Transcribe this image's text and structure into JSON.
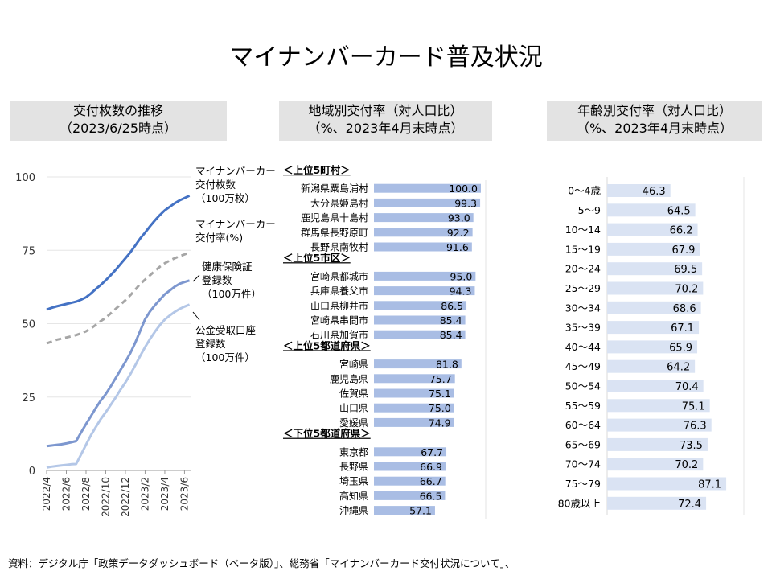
{
  "title": "マイナンバーカード普及状況",
  "source": "資料：デジタル庁「政策データダッシュボード（ベータ版）」、総務省「マイナンバーカード交付状況について」、",
  "left_panel": {
    "title_line1": "交付枚数の推移",
    "title_line2": "（2023/6/25時点）"
  },
  "middle_panel": {
    "title_line1": "地域別交付率（対人口比）",
    "title_line2": "（%、2023年4月末時点）"
  },
  "right_panel": {
    "title_line1": "年齢別交付率（対人口比）",
    "title_line2": "（%、2023年4月末時点）"
  },
  "chart_data": [
    {
      "type": "line",
      "ylim": [
        0,
        100
      ],
      "yticks": [
        0,
        25,
        50,
        75,
        100
      ],
      "xticks": [
        "2022/4",
        "2022/6",
        "2022/8",
        "2022/10",
        "2022/12",
        "2023/2",
        "2023/4",
        "2023/6"
      ],
      "x_positions": [
        0,
        2,
        4,
        6,
        8,
        10,
        12,
        14
      ],
      "series": [
        {
          "name": "card_count",
          "label_lines": [
            "マイナンバーカード",
            "交付枚数",
            "（100万枚）"
          ],
          "color": "#4472c4",
          "dash": false,
          "x": [
            0,
            0.5,
            1,
            1.5,
            2,
            2.5,
            3,
            3.5,
            4,
            4.5,
            5,
            5.5,
            6,
            6.5,
            7,
            7.5,
            8,
            8.5,
            9,
            9.5,
            10,
            10.5,
            11,
            11.5,
            12,
            12.5,
            13,
            13.5,
            14,
            14.5
          ],
          "values": [
            54.8,
            55.4,
            55.9,
            56.3,
            56.7,
            57.1,
            57.5,
            58.2,
            59.0,
            60.3,
            61.8,
            63.2,
            64.8,
            66.5,
            68.3,
            70.3,
            72.3,
            74.3,
            76.6,
            79.0,
            81.0,
            83.2,
            85.2,
            87.0,
            88.6,
            89.8,
            91.0,
            92.0,
            92.8,
            93.6
          ]
        },
        {
          "name": "card_rate",
          "label_lines": [
            "マイナンバーカード",
            "交付率(%)"
          ],
          "color": "#a6a6a6",
          "dash": true,
          "x": [
            0,
            0.5,
            1,
            1.5,
            2,
            2.5,
            3,
            3.5,
            4,
            4.5,
            5,
            5.5,
            6,
            6.5,
            7,
            7.5,
            8,
            8.5,
            9,
            9.5,
            10,
            10.5,
            11,
            11.5,
            12,
            12.5,
            13,
            13.5,
            14,
            14.5
          ],
          "values": [
            43.3,
            43.9,
            44.5,
            44.9,
            45.3,
            45.7,
            46.1,
            46.7,
            47.4,
            48.4,
            49.6,
            50.9,
            52.0,
            53.5,
            55.0,
            56.5,
            58.0,
            59.7,
            61.6,
            63.5,
            65.0,
            66.5,
            68.0,
            69.4,
            70.6,
            71.5,
            72.3,
            73.0,
            73.6,
            74.3
          ]
        },
        {
          "name": "health",
          "label_lines": [
            "健康保険証",
            "登録数",
            "（100万件）"
          ],
          "color": "#7d97cf",
          "dash": false,
          "x": [
            0,
            0.5,
            1,
            1.5,
            2,
            2.5,
            3,
            3.5,
            4,
            4.5,
            5,
            5.5,
            6,
            6.5,
            7,
            7.5,
            8,
            8.5,
            9,
            9.5,
            10,
            10.5,
            11,
            11.5,
            12,
            12.5,
            13,
            13.5,
            14,
            14.5
          ],
          "values": [
            8.3,
            8.5,
            8.7,
            8.9,
            9.2,
            9.6,
            10.0,
            13.0,
            15.8,
            18.5,
            21.3,
            23.8,
            26.0,
            28.6,
            31.4,
            34.2,
            37.0,
            40.0,
            43.5,
            47.5,
            51.5,
            54.2,
            56.3,
            58.2,
            60.0,
            61.3,
            62.6,
            63.6,
            64.2,
            64.7
          ]
        },
        {
          "name": "bank",
          "label_lines": [
            "公金受取口座",
            "登録数",
            "（100万件）"
          ],
          "color": "#b4c7e7",
          "dash": false,
          "x": [
            0,
            0.5,
            1,
            1.5,
            2,
            2.5,
            3,
            3.5,
            4,
            4.5,
            5,
            5.5,
            6,
            6.5,
            7,
            7.5,
            8,
            8.5,
            9,
            9.5,
            10,
            10.5,
            11,
            11.5,
            12,
            12.5,
            13,
            13.5,
            14,
            14.5
          ],
          "values": [
            1.0,
            1.3,
            1.5,
            1.7,
            1.9,
            2.1,
            2.2,
            5.5,
            8.8,
            12.0,
            14.8,
            17.5,
            19.8,
            22.3,
            24.8,
            27.5,
            30.0,
            32.8,
            35.8,
            39.0,
            42.0,
            44.8,
            47.3,
            49.5,
            51.4,
            52.8,
            54.0,
            55.0,
            55.8,
            56.5
          ]
        }
      ]
    },
    {
      "type": "bar",
      "groups": [
        {
          "header": "＜上位5町村＞",
          "categories": [
            "新潟県粟島浦村",
            "大分県姫島村",
            "鹿児島県十島村",
            "群馬県長野原町",
            "長野県南牧村"
          ],
          "values": [
            100.0,
            99.3,
            93.0,
            92.2,
            91.6
          ],
          "labels": [
            "100.0",
            "99.3",
            "93.0",
            "92.2",
            "91.6"
          ]
        },
        {
          "header": "＜上位5市区＞",
          "categories": [
            "宮崎県都城市",
            "兵庫県養父市",
            "山口県柳井市",
            "宮崎県串間市",
            "石川県加賀市"
          ],
          "values": [
            95.0,
            94.3,
            86.5,
            85.4,
            85.4
          ],
          "labels": [
            "95.0",
            "94.3",
            "86.5",
            "85.4",
            "85.4"
          ]
        },
        {
          "header": "＜上位5都道府県＞",
          "categories": [
            "宮崎県",
            "鹿児島県",
            "佐賀県",
            "山口県",
            "愛媛県"
          ],
          "values": [
            81.8,
            75.7,
            75.1,
            75.0,
            74.9
          ],
          "labels": [
            "81.8",
            "75.7",
            "75.1",
            "75.0",
            "74.9"
          ]
        },
        {
          "header": "＜下位5都道府県＞",
          "categories": [
            "東京都",
            "長野県",
            "埼玉県",
            "高知県",
            "沖縄県"
          ],
          "values": [
            67.7,
            66.9,
            66.7,
            66.5,
            57.1
          ],
          "labels": [
            "67.7",
            "66.9",
            "66.7",
            "66.5",
            "57.1"
          ]
        }
      ],
      "color": "#a9bde4",
      "xlim": [
        0,
        100
      ]
    },
    {
      "type": "bar",
      "categories": [
        "0～4歳",
        "5～9",
        "10～14",
        "15～19",
        "20～24",
        "25～29",
        "30～34",
        "35～39",
        "40～44",
        "45～49",
        "50～54",
        "55～59",
        "60～64",
        "65～69",
        "70～74",
        "75～79",
        "80歳以上"
      ],
      "values": [
        46.3,
        64.5,
        66.2,
        67.9,
        69.5,
        70.2,
        68.6,
        67.1,
        65.9,
        64.2,
        70.4,
        75.1,
        76.3,
        73.5,
        70.2,
        87.1,
        72.4
      ],
      "labels": [
        "46.3",
        "64.5",
        "66.2",
        "67.9",
        "69.5",
        "70.2",
        "68.6",
        "67.1",
        "65.9",
        "64.2",
        "70.4",
        "75.1",
        "76.3",
        "73.5",
        "70.2",
        "87.1",
        "72.4"
      ],
      "color": "#dae3f3",
      "xlim": [
        0,
        100
      ]
    }
  ]
}
